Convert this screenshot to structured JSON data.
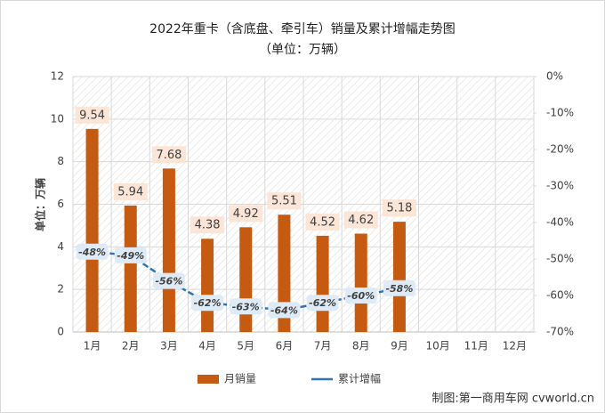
{
  "chart_data": {
    "type": "bar",
    "title": "2022年重卡（含底盘、牵引车）销量及累计增幅走势图",
    "subtitle": "（单位：万辆）",
    "y_label": "单位：万辆",
    "source": "制图:第一商用车网 cvworld.cn",
    "categories": [
      "1月",
      "2月",
      "3月",
      "4月",
      "5月",
      "6月",
      "7月",
      "8月",
      "9月",
      "10月",
      "11月",
      "12月"
    ],
    "series": [
      {
        "name": "月销量",
        "type": "bar",
        "color": "#c55a11",
        "values": [
          9.54,
          5.94,
          7.68,
          4.38,
          4.92,
          5.51,
          4.52,
          4.62,
          5.18,
          null,
          null,
          null
        ]
      },
      {
        "name": "累计增幅",
        "type": "line",
        "axis": "y2",
        "color": "#2e75b6",
        "values": [
          -48,
          -49,
          -56,
          -62,
          -63,
          -64,
          -62,
          -60,
          -58,
          null,
          null,
          null
        ],
        "value_labels": [
          "-48%",
          "-49%",
          "-56%",
          "-62%",
          "-63%",
          "-64%",
          "-62%",
          "-60%",
          "-58%",
          null,
          null,
          null
        ]
      }
    ],
    "ylim": [
      0,
      12
    ],
    "yticks": [
      0,
      2,
      4,
      6,
      8,
      10,
      12
    ],
    "y2lim": [
      -70,
      0
    ],
    "y2ticks": [
      {
        "value": 0,
        "label": "0%"
      },
      {
        "value": -10,
        "label": "-10%"
      },
      {
        "value": -20,
        "label": "-20%"
      },
      {
        "value": -30,
        "label": "-30%"
      },
      {
        "value": -40,
        "label": "-40%"
      },
      {
        "value": -50,
        "label": "-50%"
      },
      {
        "value": -60,
        "label": "-60%"
      },
      {
        "value": -70,
        "label": "-70%"
      }
    ],
    "grid": true
  }
}
